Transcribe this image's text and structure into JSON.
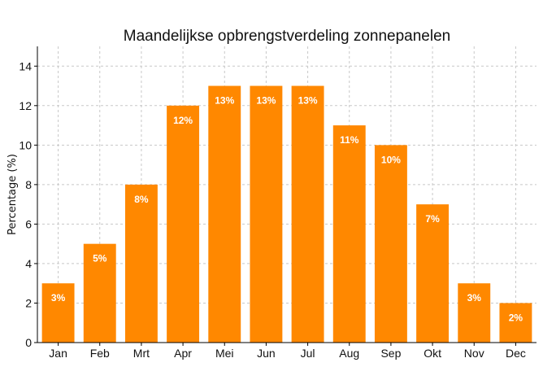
{
  "chart_data": {
    "type": "bar",
    "title": "Maandelijkse opbrengstverdeling zonnepanelen",
    "xlabel": "",
    "ylabel": "Percentage (%)",
    "categories": [
      "Jan",
      "Feb",
      "Mrt",
      "Apr",
      "Mei",
      "Jun",
      "Jul",
      "Aug",
      "Sep",
      "Okt",
      "Nov",
      "Dec"
    ],
    "values": [
      3,
      5,
      8,
      12,
      13,
      13,
      13,
      11,
      10,
      7,
      3,
      2
    ],
    "data_labels": [
      "3%",
      "5%",
      "8%",
      "12%",
      "13%",
      "13%",
      "13%",
      "11%",
      "10%",
      "7%",
      "3%",
      "2%"
    ],
    "ylim": [
      0,
      15
    ],
    "yticks": [
      0,
      2,
      4,
      6,
      8,
      10,
      12,
      14
    ],
    "grid": true,
    "bar_color": "#ff8800",
    "label_color": "#ffffff"
  }
}
